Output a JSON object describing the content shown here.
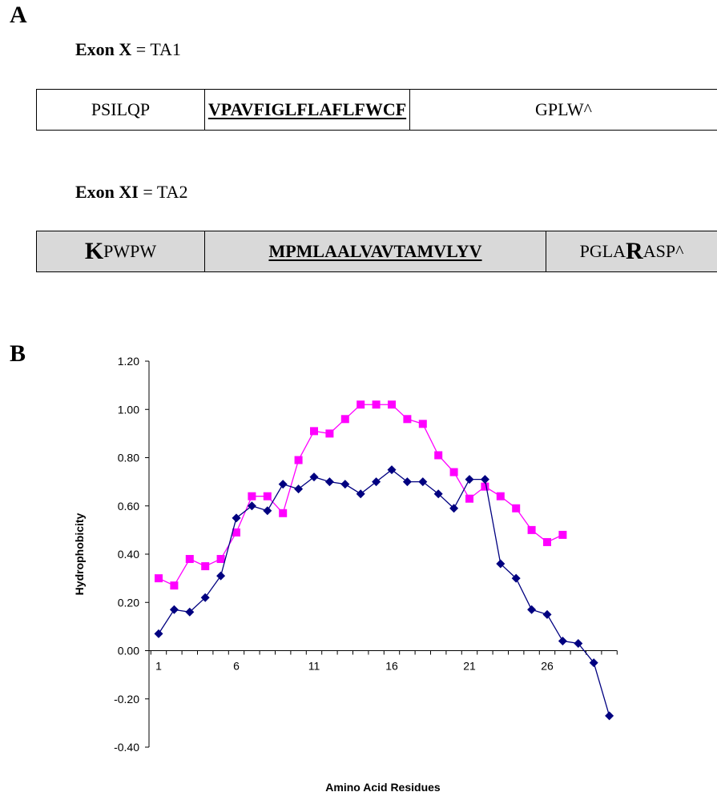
{
  "panel_a": {
    "label": "A",
    "exon_x": {
      "heading_name": "Exon X",
      "heading_eq": " = ",
      "heading_value": "TA1",
      "cells": [
        "PSILQP",
        "VPAVFIGLFLAFLFWCF",
        "GPLW^"
      ]
    },
    "exon_xi": {
      "heading_name": "Exon XI",
      "heading_eq": " = ",
      "heading_value": "TA2",
      "cell1_big": "K",
      "cell1_rest": "PWPW",
      "cell2": "MPMLAALVAVTAMVLYV",
      "cell3_pre": "PGLA",
      "cell3_big": "R",
      "cell3_post": "ASP^"
    }
  },
  "panel_b": {
    "label": "B"
  },
  "chart_data": {
    "type": "line",
    "xlabel": "Amino Acid Residues",
    "ylabel": "Hydrophobicity",
    "ylim": [
      -0.4,
      1.2
    ],
    "y_ticks": [
      -0.4,
      -0.2,
      0.0,
      0.2,
      0.4,
      0.6,
      0.8,
      1.0,
      1.2
    ],
    "y_tick_labels": [
      "-0.40",
      "-0.20",
      "0.00",
      "0.20",
      "0.40",
      "0.60",
      "0.80",
      "1.00",
      "1.20"
    ],
    "x_tick_labels": [
      "1",
      "6",
      "11",
      "16",
      "21",
      "26"
    ],
    "x_tick_values": [
      1,
      6,
      11,
      16,
      21,
      26
    ],
    "x_categories_count": 30,
    "grid": false,
    "legend": "none",
    "series": [
      {
        "color": "#FF00FF",
        "marker": "square",
        "x": [
          1,
          2,
          3,
          4,
          5,
          6,
          7,
          8,
          9,
          10,
          11,
          12,
          13,
          14,
          15,
          16,
          17,
          18,
          19,
          20,
          21,
          22,
          23,
          24,
          25,
          26,
          27
        ],
        "values": [
          0.3,
          0.27,
          0.38,
          0.35,
          0.38,
          0.49,
          0.64,
          0.64,
          0.57,
          0.79,
          0.91,
          0.9,
          0.96,
          1.02,
          1.02,
          1.02,
          0.96,
          0.94,
          0.81,
          0.74,
          0.63,
          0.68,
          0.64,
          0.59,
          0.5,
          0.45,
          0.48
        ]
      },
      {
        "color": "#000080",
        "marker": "diamond",
        "x": [
          1,
          2,
          3,
          4,
          5,
          6,
          7,
          8,
          9,
          10,
          11,
          12,
          13,
          14,
          15,
          16,
          17,
          18,
          19,
          20,
          21,
          22,
          23,
          24,
          25,
          26,
          27,
          28,
          29,
          30
        ],
        "values": [
          0.07,
          0.17,
          0.16,
          0.22,
          0.31,
          0.55,
          0.6,
          0.58,
          0.69,
          0.67,
          0.72,
          0.7,
          0.69,
          0.65,
          0.7,
          0.75,
          0.7,
          0.7,
          0.65,
          0.59,
          0.71,
          0.71,
          0.36,
          0.3,
          0.17,
          0.15,
          0.04,
          0.03,
          -0.05,
          -0.27
        ]
      }
    ]
  }
}
